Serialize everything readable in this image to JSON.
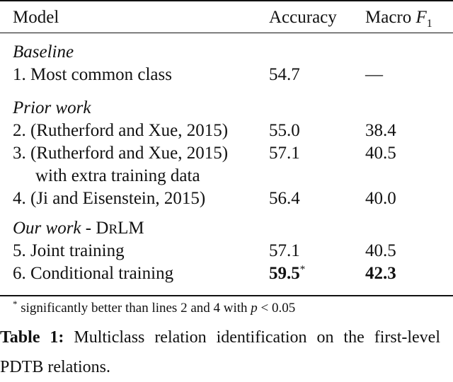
{
  "header": {
    "model": "Model",
    "accuracy": "Accuracy",
    "macro_prefix": "Macro ",
    "macro_f": "F",
    "macro_sub": "1"
  },
  "sections": [
    {
      "title": "Baseline",
      "rows": [
        {
          "model": "1. Most common class",
          "accuracy": "54.7",
          "macro": "—"
        }
      ]
    },
    {
      "title": "Prior work",
      "rows": [
        {
          "model": "2. (Rutherford and Xue, 2015)",
          "accuracy": "55.0",
          "macro": "38.4"
        },
        {
          "model": "3. (Rutherford and Xue, 2015)",
          "model_line2": "with extra training data",
          "accuracy": "57.1",
          "macro": "40.5"
        },
        {
          "model": "4. (Ji and Eisenstein, 2015)",
          "accuracy": "56.4",
          "macro": "40.0"
        }
      ]
    },
    {
      "title": "Our work",
      "title_suffix": " - ",
      "title_sc_d": "D",
      "title_sc_r": "R",
      "title_sc_lm": "LM",
      "rows": [
        {
          "model": "5. Joint training",
          "accuracy": "57.1",
          "macro": "40.5"
        },
        {
          "model": "6. Conditional training",
          "accuracy": "59.5",
          "accuracy_mark": "*",
          "macro": "42.3"
        }
      ]
    }
  ],
  "footnote": {
    "mark": "*",
    "text": " significantly better than lines 2 and 4 with ",
    "math_p": "p",
    "math_rest": " < 0.05"
  },
  "caption": {
    "label": "Table 1:",
    "text": " Multiclass relation identification on the first-level PDTB relations."
  }
}
